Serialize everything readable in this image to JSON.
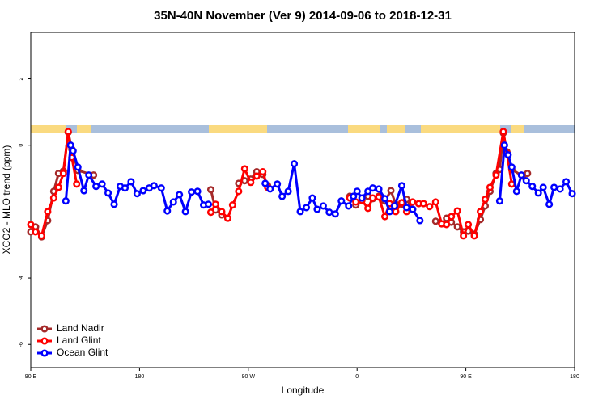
{
  "chart_data": {
    "type": "line",
    "title": "35N-40N November (Ver 9)   2014-09-06 to 2018-12-31",
    "x_label": "Longitude",
    "y_label": "XCO2 - MLO trend (ppm)",
    "xlim": [
      90,
      540
    ],
    "ylim": [
      -6.7,
      3.4
    ],
    "xticks": [
      {
        "value": 90,
        "label": "90 E"
      },
      180,
      {
        "value": 270,
        "label": "90 W"
      },
      {
        "value": 360,
        "label": "0"
      },
      {
        "value": 450,
        "label": "90 E"
      },
      {
        "value": 540,
        "label": "180"
      }
    ],
    "yticks": [
      -6,
      -4,
      0,
      2
    ],
    "legend": "bottomleft",
    "series": [
      {
        "name": "Land Nadir",
        "color": "#a52a2a",
        "x": [
          90,
          94,
          99,
          104,
          109,
          113,
          117,
          121,
          124,
          129,
          142,
          190,
          239,
          243,
          248,
          255,
          262,
          267,
          272,
          277,
          282,
          286,
          320,
          354,
          359,
          364,
          369,
          373,
          378,
          383,
          388,
          392,
          397,
          401,
          406,
          415,
          425,
          430,
          434,
          438,
          443,
          448,
          452,
          457,
          462,
          466,
          470,
          475,
          478,
          481,
          484,
          488,
          497,
          501
        ],
        "values": [
          -2.61,
          -2.46,
          -2.76,
          -2.27,
          -1.39,
          -0.85,
          -0.78,
          0.39,
          -0.12,
          -0.76,
          -0.9,
          null,
          -1.34,
          -1.95,
          -2.1,
          null,
          -1.15,
          -1.07,
          -1.02,
          -0.8,
          -0.88,
          -1.22,
          null,
          -1.54,
          -1.8,
          -1.66,
          -1.54,
          -1.61,
          -1.54,
          -1.68,
          -1.37,
          -1.78,
          -1.78,
          -1.63,
          -1.93,
          null,
          -2.29,
          -2.37,
          -2.2,
          -2.32,
          -2.46,
          -2.61,
          -2.59,
          -2.68,
          -2.24,
          -1.83,
          -1.39,
          -0.85,
          -0.73,
          0.37,
          -0.2,
          -0.73,
          -0.93,
          -0.85
        ]
      },
      {
        "name": "Land Glint",
        "color": "#ff0000",
        "x": [
          90,
          94,
          99,
          104,
          109,
          113,
          117,
          121,
          124,
          128,
          180,
          239,
          243,
          248,
          253,
          257,
          262,
          267,
          272,
          277,
          282,
          286,
          320,
          354,
          359,
          364,
          369,
          373,
          378,
          383,
          387,
          392,
          397,
          401,
          406,
          411,
          415,
          420,
          425,
          430,
          434,
          438,
          443,
          448,
          452,
          457,
          462,
          466,
          470,
          475,
          481,
          484,
          488
        ],
        "values": [
          -2.39,
          -2.61,
          -2.73,
          -2.0,
          -1.59,
          -1.27,
          -0.85,
          0.41,
          -0.37,
          -1.17,
          null,
          -2.02,
          -1.78,
          -2.0,
          -2.2,
          -1.8,
          -1.39,
          -0.71,
          -1.12,
          -0.93,
          -0.8,
          -1.27,
          null,
          -1.59,
          -1.71,
          -1.66,
          -1.9,
          -1.59,
          -1.56,
          -2.15,
          -1.76,
          -2.0,
          -1.73,
          -2.0,
          -1.71,
          -1.76,
          -1.76,
          -1.85,
          -1.71,
          -2.37,
          -2.39,
          -2.15,
          -1.98,
          -2.73,
          -2.39,
          -2.73,
          -2.0,
          -1.63,
          -1.27,
          -0.9,
          0.41,
          -0.24,
          -1.17
        ]
      },
      {
        "name": "Ocean Glint",
        "color": "#0000ff",
        "x": [
          119,
          123,
          125,
          129,
          134,
          138,
          144,
          149,
          154,
          159,
          164,
          168,
          173,
          178,
          183,
          188,
          192,
          198,
          203,
          208,
          213,
          218,
          223,
          228,
          233,
          237,
          260,
          284,
          288,
          294,
          298,
          303,
          308,
          313,
          318,
          323,
          327,
          332,
          337,
          342,
          347,
          353,
          357,
          360,
          364,
          369,
          373,
          378,
          383,
          387,
          391,
          397,
          401,
          406,
          412,
          445,
          478,
          482,
          485,
          488,
          492,
          496,
          500,
          505,
          510,
          514,
          519,
          523,
          528,
          533,
          538
        ],
        "values": [
          -1.68,
          0,
          -0.17,
          -0.66,
          -1.37,
          -0.9,
          -1.24,
          -1.17,
          -1.44,
          -1.78,
          -1.24,
          -1.29,
          -1.1,
          -1.46,
          -1.37,
          -1.29,
          -1.22,
          -1.29,
          -1.98,
          -1.71,
          -1.49,
          -2.0,
          -1.41,
          -1.39,
          -1.8,
          -1.78,
          null,
          -1.15,
          -1.32,
          -1.17,
          -1.54,
          -1.39,
          -0.56,
          -2.0,
          -1.88,
          -1.59,
          -1.93,
          -1.83,
          -2.02,
          -2.07,
          -1.68,
          -1.83,
          -1.54,
          -1.39,
          -1.59,
          -1.39,
          -1.29,
          -1.32,
          -1.61,
          -2.0,
          -1.83,
          -1.22,
          -1.88,
          -1.93,
          -2.27,
          null,
          -1.68,
          0,
          -0.29,
          -0.66,
          -1.39,
          -0.9,
          -1.07,
          -1.24,
          -1.44,
          -1.27,
          -1.78,
          -1.27,
          -1.32,
          -1.1,
          -1.46
        ]
      }
    ]
  }
}
